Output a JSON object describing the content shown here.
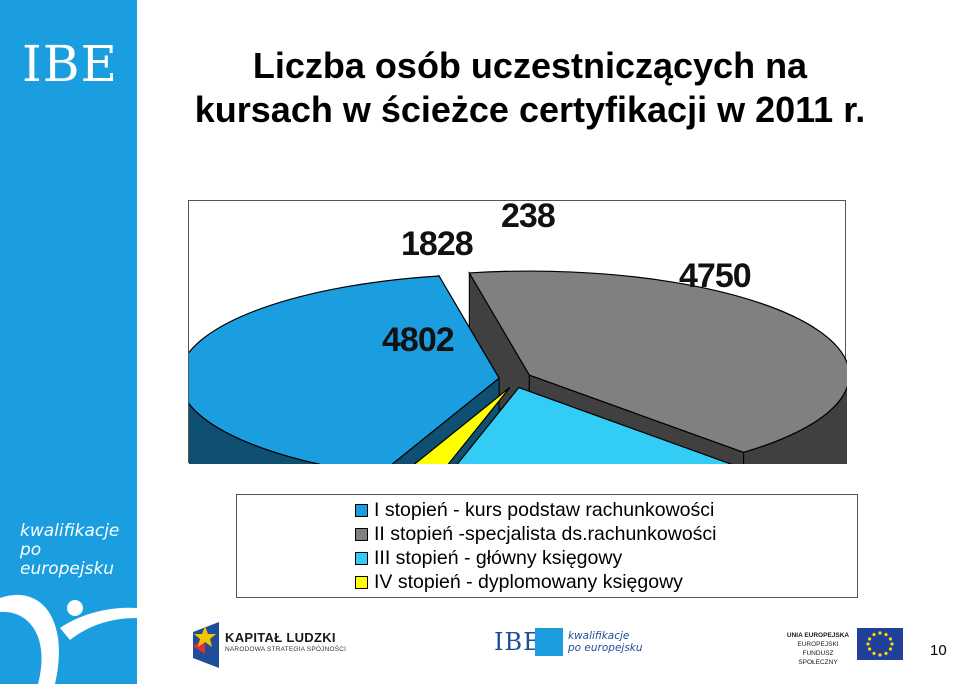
{
  "branding": {
    "sidebar_logo": "IBE",
    "sidebar_tagline_line1": "kwalifikacje",
    "sidebar_tagline_line2": "po europejsku",
    "sidebar_color": "#1a9ee0"
  },
  "footer": {
    "kapital_title": "KAPITAŁ LUDZKI",
    "kapital_subtitle": "NARODOWA STRATEGIA SPÓJNOŚCI",
    "ibe_logo": "IBE",
    "kwal_line1": "kwalifikacje",
    "kwal_line2": "po europejsku",
    "ue_line1": "UNIA EUROPEJSKA",
    "ue_line2": "EUROPEJSKI",
    "ue_line3": "FUNDUSZ SPOŁECZNY",
    "page_number": "10"
  },
  "chart_data": {
    "type": "pie",
    "title_line1": "Liczba osób uczestniczących na",
    "title_line2": "kursach w ścieżce certyfikacji w 2011 r.",
    "style": "3d-exploded",
    "slices": [
      {
        "label": "I stopień - kurs podstaw rachunkowości",
        "value": 4750,
        "color": "#1a9ee0",
        "side_color": "#0e4f72"
      },
      {
        "label": "II stopień -specjalista ds.rachunkowości",
        "value": 4802,
        "color": "#808080",
        "side_color": "#404040"
      },
      {
        "label": "III stopień - główny księgowy",
        "value": 1828,
        "color": "#33ccf5",
        "side_color": "#17728c"
      },
      {
        "label": "IV stopień - dyplomowany księgowy",
        "value": 238,
        "color": "#ffff00",
        "side_color": "#8a8a00"
      }
    ],
    "legend_position": "bottom"
  }
}
